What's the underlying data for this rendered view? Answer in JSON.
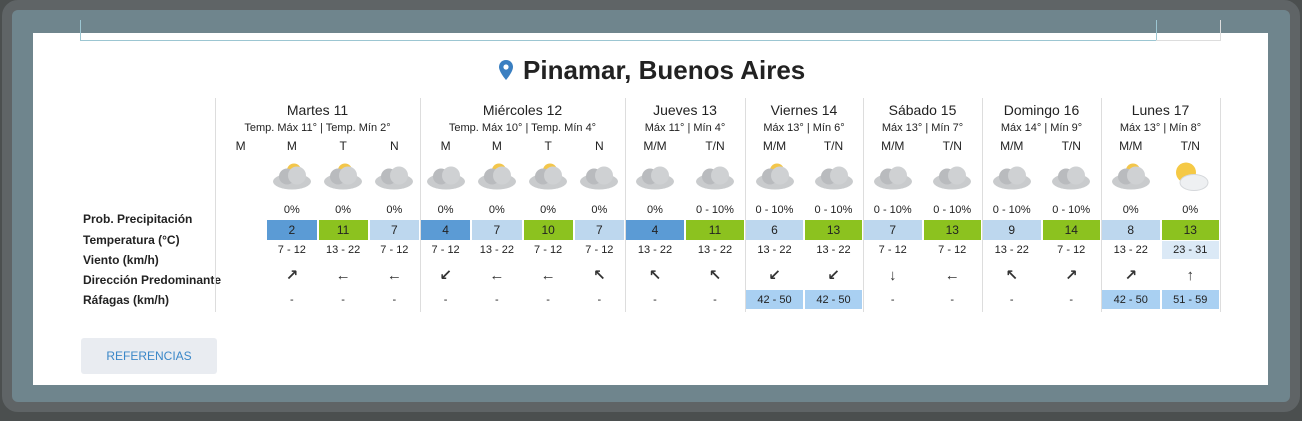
{
  "header": {
    "title": "Pinamar, Buenos Aires"
  },
  "row_labels": [
    "Prob. Precipitación",
    "Temperatura (°C)",
    "Viento (km/h)",
    "Dirección Predominante",
    "Ráfagas (km/h)"
  ],
  "days": [
    {
      "name": "Martes 11",
      "summary": "Temp. Máx 11° | Temp. Mín 2°",
      "periods": [
        "M",
        "M",
        "T",
        "N"
      ],
      "precip": [
        null,
        "0%",
        "0%",
        "0%"
      ],
      "temp": [
        null,
        2,
        11,
        7
      ],
      "temp_colors": [
        null,
        "#5b9bd5",
        "#8cc21f",
        "#bdd7ee"
      ],
      "wind": [
        null,
        "7 - 12",
        "13 - 22",
        "7 - 12"
      ],
      "wind_colors": [
        null,
        null,
        null,
        null
      ],
      "direction": [
        null,
        "↗",
        "←",
        "←"
      ],
      "gusts": [
        null,
        "-",
        "-",
        "-"
      ],
      "gust_colors": [
        null,
        null,
        null,
        null
      ]
    },
    {
      "name": "Miércoles 12",
      "summary": "Temp. Máx 10° | Temp. Mín 4°",
      "periods": [
        "M",
        "M",
        "T",
        "N"
      ],
      "precip": [
        "0%",
        "0%",
        "0%",
        "0%"
      ],
      "temp": [
        4,
        7,
        10,
        7
      ],
      "temp_colors": [
        "#5b9bd5",
        "#bdd7ee",
        "#8cc21f",
        "#bdd7ee"
      ],
      "wind": [
        "7 - 12",
        "13 - 22",
        "7 - 12",
        "7 - 12"
      ],
      "wind_colors": [
        null,
        null,
        null,
        null
      ],
      "direction": [
        "↙",
        "←",
        "←",
        "↖"
      ],
      "gusts": [
        "-",
        "-",
        "-",
        "-"
      ],
      "gust_colors": [
        null,
        null,
        null,
        null
      ]
    },
    {
      "name": "Jueves 13",
      "summary": "Máx 11° | Mín 4°",
      "periods": [
        "M/M",
        "T/N"
      ],
      "precip": [
        "0%",
        "0 - 10%"
      ],
      "temp": [
        4,
        11
      ],
      "temp_colors": [
        "#5b9bd5",
        "#8cc21f"
      ],
      "wind": [
        "13 - 22",
        "13 - 22"
      ],
      "wind_colors": [
        null,
        null
      ],
      "direction": [
        "↖",
        "↖"
      ],
      "gusts": [
        "-",
        "-"
      ],
      "gust_colors": [
        null,
        null
      ]
    },
    {
      "name": "Viernes 14",
      "summary": "Máx 13° | Mín 6°",
      "periods": [
        "M/M",
        "T/N"
      ],
      "precip": [
        "0 - 10%",
        "0 - 10%"
      ],
      "temp": [
        6,
        13
      ],
      "temp_colors": [
        "#bdd7ee",
        "#8cc21f"
      ],
      "wind": [
        "13 - 22",
        "13 - 22"
      ],
      "wind_colors": [
        null,
        null
      ],
      "direction": [
        "↙",
        "↙"
      ],
      "gusts": [
        "42 - 50",
        "42 - 50"
      ],
      "gust_colors": [
        "#a9d0f2",
        "#a9d0f2"
      ]
    },
    {
      "name": "Sábado 15",
      "summary": "Máx 13° | Mín 7°",
      "periods": [
        "M/M",
        "T/N"
      ],
      "precip": [
        "0 - 10%",
        "0 - 10%"
      ],
      "temp": [
        7,
        13
      ],
      "temp_colors": [
        "#bdd7ee",
        "#8cc21f"
      ],
      "wind": [
        "7 - 12",
        "7 - 12"
      ],
      "wind_colors": [
        null,
        null
      ],
      "direction": [
        "↓",
        "←"
      ],
      "gusts": [
        "-",
        "-"
      ],
      "gust_colors": [
        null,
        null
      ]
    },
    {
      "name": "Domingo 16",
      "summary": "Máx 14° | Mín 9°",
      "periods": [
        "M/M",
        "T/N"
      ],
      "precip": [
        "0 - 10%",
        "0 - 10%"
      ],
      "temp": [
        9,
        14
      ],
      "temp_colors": [
        "#bdd7ee",
        "#8cc21f"
      ],
      "wind": [
        "13 - 22",
        "7 - 12"
      ],
      "wind_colors": [
        null,
        null
      ],
      "direction": [
        "↖",
        "↗"
      ],
      "gusts": [
        "-",
        "-"
      ],
      "gust_colors": [
        null,
        null
      ]
    },
    {
      "name": "Lunes 17",
      "summary": "Máx 13° | Mín 8°",
      "periods": [
        "M/M",
        "T/N"
      ],
      "precip": [
        "0%",
        "0%"
      ],
      "temp": [
        8,
        13
      ],
      "temp_colors": [
        "#bdd7ee",
        "#8cc21f"
      ],
      "wind": [
        "13 - 22",
        "23 - 31"
      ],
      "wind_colors": [
        null,
        "#dbe9f6"
      ],
      "direction": [
        "↗",
        "↑"
      ],
      "gusts": [
        "42 - 50",
        "51 - 59"
      ],
      "gust_colors": [
        "#a9d0f2",
        "#a9d0f2"
      ]
    }
  ],
  "button": "REFERENCIAS"
}
